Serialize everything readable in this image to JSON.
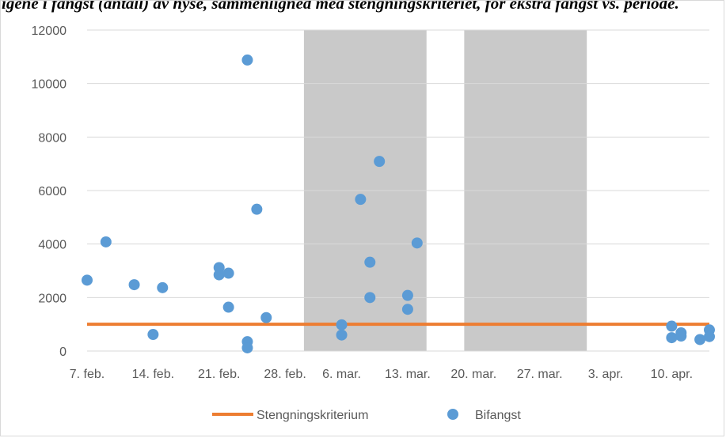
{
  "caption": "igene i fangst (antall) av hyse, sammenligned med stengningskriteriet, for ekstra fangst vs. periode.",
  "colors": {
    "stengning": "#ed7d31",
    "bifangst": "#5b9bd5",
    "shade": "#c9c9c9",
    "grid": "#d9d9d9",
    "axis_text": "#595959"
  },
  "chart_data": {
    "type": "scatter",
    "title": "",
    "xlabel": "",
    "ylabel": "",
    "x_axis": {
      "kind": "date",
      "range": [
        "2015-02-07",
        "2015-04-14"
      ],
      "tick_dates": [
        "2015-02-07",
        "2015-02-14",
        "2015-02-21",
        "2015-02-28",
        "2015-03-06",
        "2015-03-13",
        "2015-03-20",
        "2015-03-27",
        "2015-04-03",
        "2015-04-10"
      ],
      "tick_labels": [
        "7. feb.",
        "14. feb.",
        "21. feb.",
        "28. feb.",
        "6. mar.",
        "13. mar.",
        "20. mar.",
        "27. mar.",
        "3. apr.",
        "10. apr."
      ]
    },
    "y_axis": {
      "range": [
        0,
        12000
      ],
      "ticks": [
        0,
        2000,
        4000,
        6000,
        8000,
        10000,
        12000
      ],
      "tick_labels": [
        "0",
        "2000",
        "4000",
        "6000",
        "8000",
        "10000",
        "12000"
      ]
    },
    "grid": "horizontal",
    "legend": "bottom",
    "shaded_periods": [
      [
        "2015-03-02",
        "2015-03-15"
      ],
      [
        "2015-03-19",
        "2015-04-01"
      ]
    ],
    "series": [
      {
        "name": "Stengningskriterium",
        "type": "line",
        "points": [
          {
            "x": "2015-02-07",
            "y": 1000
          },
          {
            "x": "2015-04-14",
            "y": 1000
          }
        ]
      },
      {
        "name": "Bifangst",
        "type": "scatter",
        "points": [
          {
            "x": "2015-02-07",
            "y": 2650
          },
          {
            "x": "2015-02-09",
            "y": 4080
          },
          {
            "x": "2015-02-12",
            "y": 2480
          },
          {
            "x": "2015-02-14",
            "y": 620
          },
          {
            "x": "2015-02-15",
            "y": 2370
          },
          {
            "x": "2015-02-21",
            "y": 3120
          },
          {
            "x": "2015-02-21",
            "y": 2850
          },
          {
            "x": "2015-02-22",
            "y": 2910
          },
          {
            "x": "2015-02-22",
            "y": 1640
          },
          {
            "x": "2015-02-24",
            "y": 10880
          },
          {
            "x": "2015-02-24",
            "y": 350
          },
          {
            "x": "2015-02-24",
            "y": 120
          },
          {
            "x": "2015-02-25",
            "y": 5300
          },
          {
            "x": "2015-02-26",
            "y": 1250
          },
          {
            "x": "2015-03-06",
            "y": 980
          },
          {
            "x": "2015-03-06",
            "y": 600
          },
          {
            "x": "2015-03-08",
            "y": 5670
          },
          {
            "x": "2015-03-09",
            "y": 3320
          },
          {
            "x": "2015-03-09",
            "y": 2000
          },
          {
            "x": "2015-03-10",
            "y": 7090
          },
          {
            "x": "2015-03-13",
            "y": 2080
          },
          {
            "x": "2015-03-13",
            "y": 1560
          },
          {
            "x": "2015-03-14",
            "y": 4040
          },
          {
            "x": "2015-04-10",
            "y": 930
          },
          {
            "x": "2015-04-10",
            "y": 500
          },
          {
            "x": "2015-04-11",
            "y": 680
          },
          {
            "x": "2015-04-11",
            "y": 560
          },
          {
            "x": "2015-04-13",
            "y": 430
          },
          {
            "x": "2015-04-14",
            "y": 790
          },
          {
            "x": "2015-04-14",
            "y": 540
          }
        ]
      }
    ]
  }
}
